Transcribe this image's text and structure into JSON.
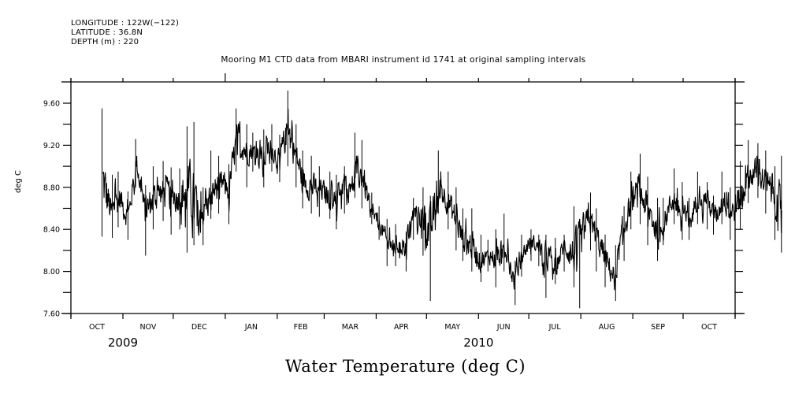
{
  "metadata": {
    "longitude": "LONGITUDE : 122W(−122)",
    "latitude": "LATITUDE : 36.8N",
    "depth": "DEPTH (m) : 220"
  },
  "chart_data": {
    "type": "line",
    "title": "Mooring M1 CTD data from MBARI instrument id 1741 at original sampling intervals",
    "bottom_title": "Water Temperature (deg C)",
    "xlabel": "",
    "ylabel": "deg C",
    "ylim": [
      7.6,
      9.76
    ],
    "yticks": [
      7.6,
      8.0,
      8.4,
      8.8,
      9.2,
      9.6
    ],
    "ytick_labels": [
      "7.60",
      "8.00",
      "8.40",
      "8.80",
      "9.20",
      "9.60"
    ],
    "yminor_step": 0.2,
    "xlim": [
      "2009-10-01",
      "2010-11-01"
    ],
    "xticks": [
      "2009-10-01",
      "2009-11-01",
      "2009-12-01",
      "2010-01-01",
      "2010-02-01",
      "2010-03-01",
      "2010-04-01",
      "2010-05-01",
      "2010-06-01",
      "2010-07-01",
      "2010-08-01",
      "2010-09-01",
      "2010-10-01",
      "2010-11-01"
    ],
    "xtick_labels": [
      "OCT",
      "NOV",
      "DEC",
      "JAN",
      "FEB",
      "MAR",
      "APR",
      "MAY",
      "JUN",
      "JUL",
      "AUG",
      "SEP",
      "OCT"
    ],
    "year_labels": [
      {
        "label": "2009",
        "at": "2009-11-01"
      },
      {
        "label": "2010",
        "at": "2010-06-01"
      }
    ],
    "grid": false,
    "series": [
      {
        "name": "Water Temperature",
        "color": "#000000",
        "start": "2009-10-20",
        "step_days": 5,
        "fields": [
          "mean",
          "min",
          "max"
        ],
        "values": [
          [
            8.85,
            8.33,
            9.55
          ],
          [
            8.55,
            8.32,
            8.92
          ],
          [
            8.7,
            8.42,
            8.95
          ],
          [
            8.5,
            8.3,
            8.76
          ],
          [
            9.05,
            8.8,
            9.26
          ],
          [
            8.55,
            8.15,
            8.82
          ],
          [
            8.7,
            8.4,
            9.0
          ],
          [
            8.75,
            8.48,
            9.05
          ],
          [
            8.72,
            8.35,
            8.99
          ],
          [
            8.7,
            8.4,
            8.98
          ],
          [
            8.8,
            8.18,
            9.38
          ],
          [
            8.65,
            8.25,
            9.42
          ],
          [
            8.55,
            8.25,
            8.8
          ],
          [
            8.75,
            8.5,
            9.15
          ],
          [
            8.85,
            8.55,
            9.1
          ],
          [
            8.78,
            8.45,
            9.02
          ],
          [
            9.3,
            8.95,
            9.55
          ],
          [
            9.15,
            8.8,
            9.4
          ],
          [
            9.15,
            8.95,
            9.32
          ],
          [
            9.05,
            8.8,
            9.35
          ],
          [
            9.18,
            8.95,
            9.4
          ],
          [
            9.05,
            8.85,
            9.3
          ],
          [
            9.35,
            9.0,
            9.72
          ],
          [
            9.1,
            8.8,
            9.4
          ],
          [
            8.85,
            8.6,
            9.15
          ],
          [
            8.8,
            8.55,
            9.1
          ],
          [
            8.78,
            8.52,
            9.0
          ],
          [
            8.7,
            8.5,
            8.95
          ],
          [
            8.75,
            8.4,
            8.92
          ],
          [
            8.8,
            8.55,
            9.0
          ],
          [
            8.95,
            8.7,
            9.32
          ],
          [
            8.9,
            8.6,
            9.25
          ],
          [
            8.55,
            8.45,
            8.75
          ],
          [
            8.45,
            8.3,
            8.62
          ],
          [
            8.25,
            8.05,
            8.5
          ],
          [
            8.25,
            8.05,
            8.45
          ],
          [
            8.22,
            8.0,
            8.38
          ],
          [
            8.55,
            8.3,
            8.7
          ],
          [
            8.55,
            8.15,
            8.8
          ],
          [
            8.35,
            7.72,
            8.72
          ],
          [
            8.8,
            8.55,
            9.15
          ],
          [
            8.7,
            8.4,
            8.95
          ],
          [
            8.5,
            8.2,
            8.8
          ],
          [
            8.3,
            8.1,
            8.6
          ],
          [
            8.25,
            8.0,
            8.6
          ],
          [
            8.1,
            7.9,
            8.35
          ],
          [
            8.15,
            8.0,
            8.3
          ],
          [
            8.12,
            7.85,
            8.4
          ],
          [
            8.25,
            8.0,
            8.55
          ],
          [
            7.9,
            7.68,
            8.1
          ],
          [
            8.15,
            7.95,
            8.35
          ],
          [
            8.3,
            8.1,
            8.4
          ],
          [
            8.22,
            8.05,
            8.35
          ],
          [
            8.15,
            7.75,
            8.35
          ],
          [
            8.05,
            7.88,
            8.32
          ],
          [
            8.25,
            8.0,
            8.35
          ],
          [
            8.15,
            7.85,
            8.62
          ],
          [
            8.3,
            7.65,
            8.5
          ],
          [
            8.5,
            8.2,
            8.75
          ],
          [
            8.3,
            8.0,
            8.6
          ],
          [
            8.1,
            7.85,
            8.35
          ],
          [
            7.95,
            7.72,
            8.25
          ],
          [
            8.4,
            8.1,
            8.62
          ],
          [
            8.65,
            8.4,
            8.95
          ],
          [
            8.75,
            8.45,
            9.12
          ],
          [
            8.6,
            8.25,
            8.9
          ],
          [
            8.4,
            8.1,
            8.7
          ],
          [
            8.5,
            8.25,
            8.7
          ],
          [
            8.7,
            8.45,
            8.98
          ],
          [
            8.55,
            8.3,
            8.85
          ],
          [
            8.45,
            8.3,
            8.7
          ],
          [
            8.75,
            8.45,
            8.95
          ],
          [
            8.7,
            8.4,
            8.85
          ],
          [
            8.5,
            8.35,
            8.72
          ],
          [
            8.7,
            8.45,
            8.95
          ],
          [
            8.55,
            8.3,
            8.8
          ],
          [
            8.7,
            8.4,
            9.05
          ],
          [
            8.9,
            8.65,
            9.25
          ],
          [
            8.95,
            8.7,
            9.22
          ],
          [
            8.85,
            8.55,
            9.15
          ],
          [
            8.7,
            8.3,
            9.0
          ],
          [
            8.65,
            8.18,
            9.1
          ]
        ]
      }
    ]
  }
}
